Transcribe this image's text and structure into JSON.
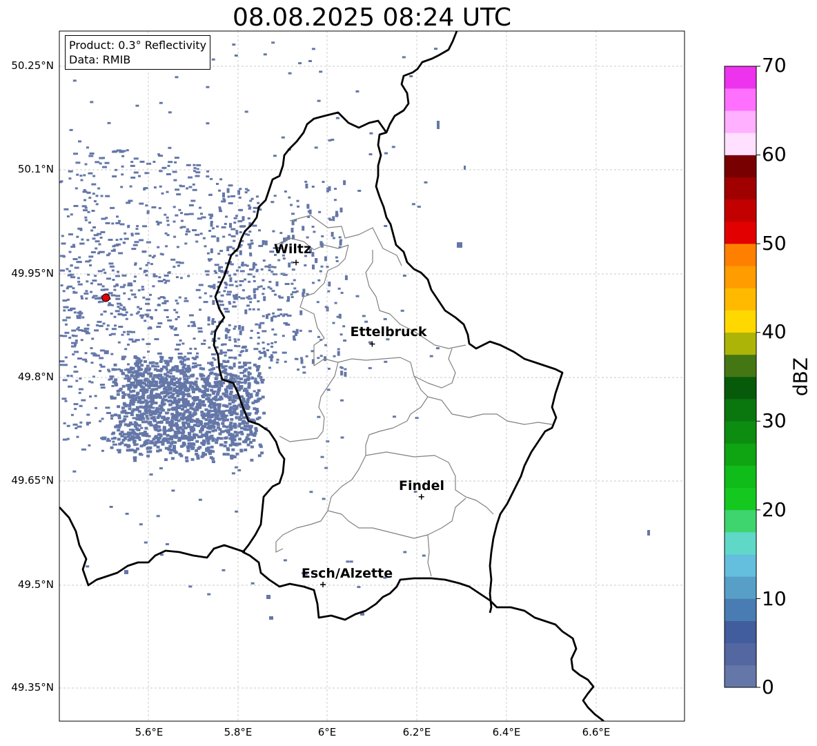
{
  "title": "08.08.2025 08:24 UTC",
  "product_box": {
    "product": "Product: 0.3° Reflectivity",
    "data_source": "Data: RMIB"
  },
  "latitude_labels": [
    "50.25°N",
    "50.1°N",
    "49.95°N",
    "49.8°N",
    "49.65°N",
    "49.5°N",
    "49.35°N"
  ],
  "longitude_labels": [
    "5.6°E",
    "5.8°E",
    "6°E",
    "6.2°E",
    "6.4°E",
    "6.6°E"
  ],
  "cities": [
    {
      "name": "Wiltz",
      "lon": 5.93,
      "lat": 49.966
    },
    {
      "name": "Ettelbruck",
      "lon": 6.1,
      "lat": 49.848
    },
    {
      "name": "Findel",
      "lon": 6.21,
      "lat": 49.627
    },
    {
      "name": "Esch/Alzette",
      "lon": 5.99,
      "lat": 49.5
    }
  ],
  "radar_site": {
    "lon": 5.505,
    "lat": 49.915,
    "color": "#e60000"
  },
  "colorbar": {
    "label": "dBZ",
    "ticks": [
      "0",
      "10",
      "20",
      "30",
      "40",
      "50",
      "60",
      "70"
    ],
    "min": 0,
    "max": 70,
    "colors": [
      "#6477a8",
      "#5467a0",
      "#425d9e",
      "#4a7cb4",
      "#589fc8",
      "#63bfdd",
      "#60d8c8",
      "#3ed46e",
      "#14c820",
      "#10bc1a",
      "#0fa412",
      "#0c8c10",
      "#0a760e",
      "#075a0a",
      "#457614",
      "#acb408",
      "#ffd800",
      "#ffba00",
      "#ff9c00",
      "#ff8000",
      "#e20000",
      "#c20000",
      "#a00000",
      "#780000",
      "#ffe0ff",
      "#ffb0ff",
      "#ff70ff",
      "#ee33ee"
    ]
  },
  "echo_color": "#6477a8"
}
